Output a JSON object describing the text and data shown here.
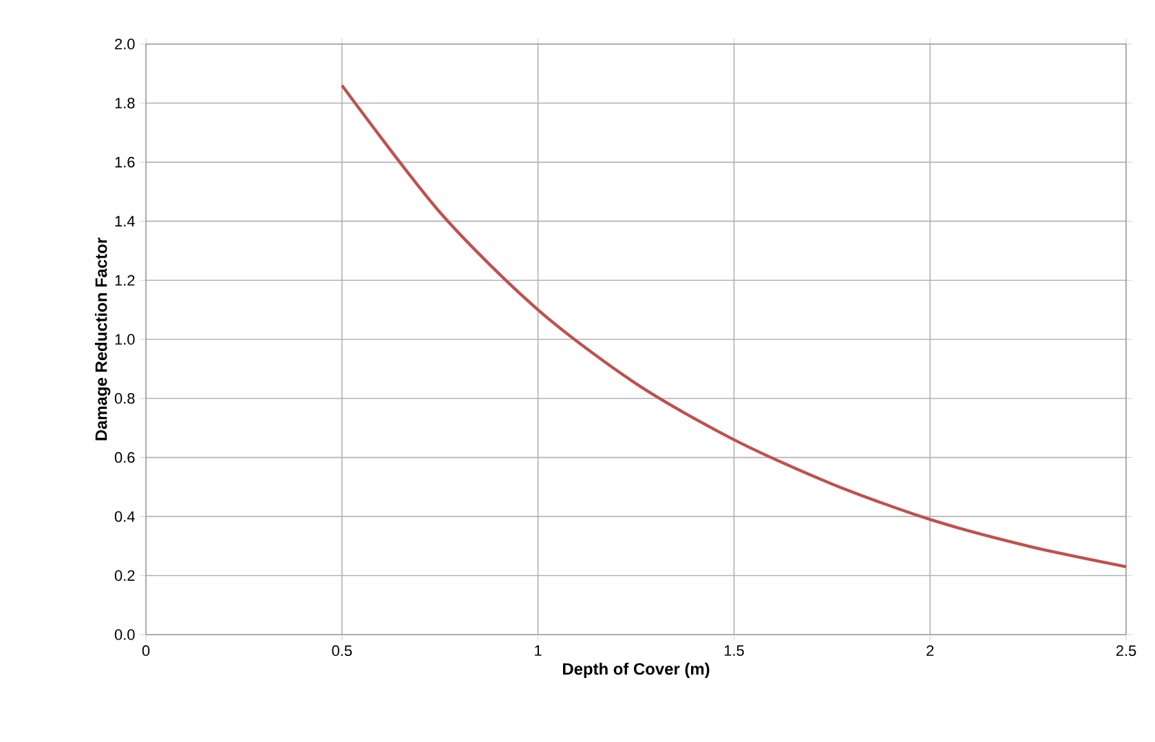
{
  "chart_data": {
    "type": "line",
    "xlabel": "Depth of Cover (m)",
    "ylabel": "Damage Reduction Factor",
    "x": [
      0.5,
      0.75,
      1.0,
      1.25,
      1.5,
      1.75,
      2.0,
      2.25,
      2.5
    ],
    "series": [
      {
        "color": "#c0504d",
        "values": [
          1.86,
          1.43,
          1.1,
          0.85,
          0.66,
          0.51,
          0.39,
          0.3,
          0.23
        ]
      }
    ],
    "xlim": [
      0,
      2.5
    ],
    "xticks": [
      0,
      0.5,
      1,
      1.5,
      2,
      2.5
    ],
    "ylim": [
      0,
      2.0
    ],
    "yticks": [
      {
        "value": 0,
        "label": "0.0"
      },
      {
        "value": 0.2,
        "label": "0.2"
      },
      {
        "value": 0.4,
        "label": "0.4"
      },
      {
        "value": 0.6,
        "label": "0.6"
      },
      {
        "value": 0.8,
        "label": "0.8"
      },
      {
        "value": 1.0,
        "label": "1.0"
      },
      {
        "value": 1.2,
        "label": "1.2"
      },
      {
        "value": 1.4,
        "label": "1.4"
      },
      {
        "value": 1.6,
        "label": "1.6"
      },
      {
        "value": 1.8,
        "label": "1.8"
      },
      {
        "value": 2.0,
        "label": "2.0"
      }
    ],
    "grid": true
  }
}
